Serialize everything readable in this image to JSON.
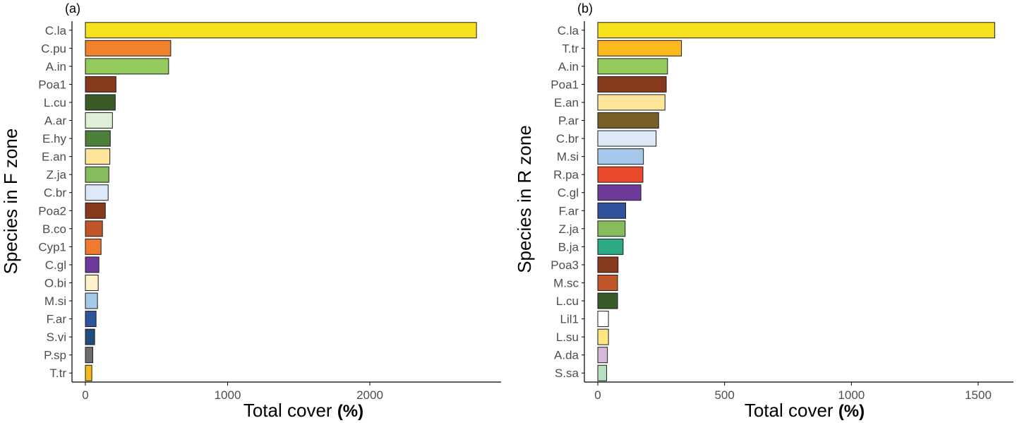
{
  "chart_data": [
    {
      "panel": "(a)",
      "type": "bar",
      "orientation": "horizontal",
      "xlabel": "Total cover",
      "xlabel_unit": "(%)",
      "ylabel": "Species in F zone",
      "xlim": [
        0,
        2900
      ],
      "xticks": [
        0,
        1000,
        2000
      ],
      "grid": false,
      "legend": "none",
      "categories": [
        "C.la",
        "C.pu",
        "A.in",
        "Poa1",
        "L.cu",
        "A.ar",
        "E.hy",
        "E.an",
        "Z.ja",
        "C.br",
        "Poa2",
        "B.co",
        "Cyp1",
        "C.gl",
        "O.bi",
        "M.si",
        "F.ar",
        "S.vi",
        "P.sp",
        "T.tr"
      ],
      "values": [
        2750,
        600,
        585,
        215,
        210,
        190,
        175,
        172,
        165,
        160,
        140,
        120,
        110,
        95,
        90,
        85,
        75,
        65,
        52,
        45
      ],
      "colors": [
        "#f7e11c",
        "#f2822a",
        "#93cc5c",
        "#873a1e",
        "#3a5a27",
        "#def0d8",
        "#4b7f3a",
        "#ffe599",
        "#86bc5c",
        "#dde9f8",
        "#873a1e",
        "#c1562a",
        "#f07a2e",
        "#6e3a9c",
        "#fff1cc",
        "#a6c8ea",
        "#2f549c",
        "#1f4e7e",
        "#6d6d6d",
        "#f5b91a"
      ]
    },
    {
      "panel": "(b)",
      "type": "bar",
      "orientation": "horizontal",
      "xlabel": "Total cover",
      "xlabel_unit": "(%)",
      "ylabel": "Species in R zone",
      "xlim": [
        0,
        1620
      ],
      "xticks": [
        0,
        500,
        1000,
        1500
      ],
      "grid": false,
      "legend": "none",
      "categories": [
        "C.la",
        "T.tr",
        "A.in",
        "Poa1",
        "E.an",
        "P.ar",
        "C.br",
        "M.si",
        "R.pa",
        "C.gl",
        "F.ar",
        "Z.ja",
        "B.ja",
        "Poa3",
        "M.sc",
        "L.cu",
        "Lil1",
        "L.su",
        "A.da",
        "S.sa"
      ],
      "values": [
        1565,
        330,
        275,
        270,
        265,
        240,
        230,
        180,
        178,
        170,
        110,
        108,
        100,
        80,
        78,
        78,
        42,
        42,
        38,
        35
      ],
      "colors": [
        "#f7e11c",
        "#fbb91e",
        "#93cc5c",
        "#873a1e",
        "#ffe599",
        "#7a5e28",
        "#dde9f8",
        "#a6c8ea",
        "#e94a2c",
        "#6e3a9c",
        "#2f549c",
        "#86bc5c",
        "#2daa84",
        "#873a1e",
        "#c1562a",
        "#3a5a27",
        "#ffffff",
        "#ffe680",
        "#d6b8d9",
        "#b7dfbf"
      ]
    }
  ]
}
